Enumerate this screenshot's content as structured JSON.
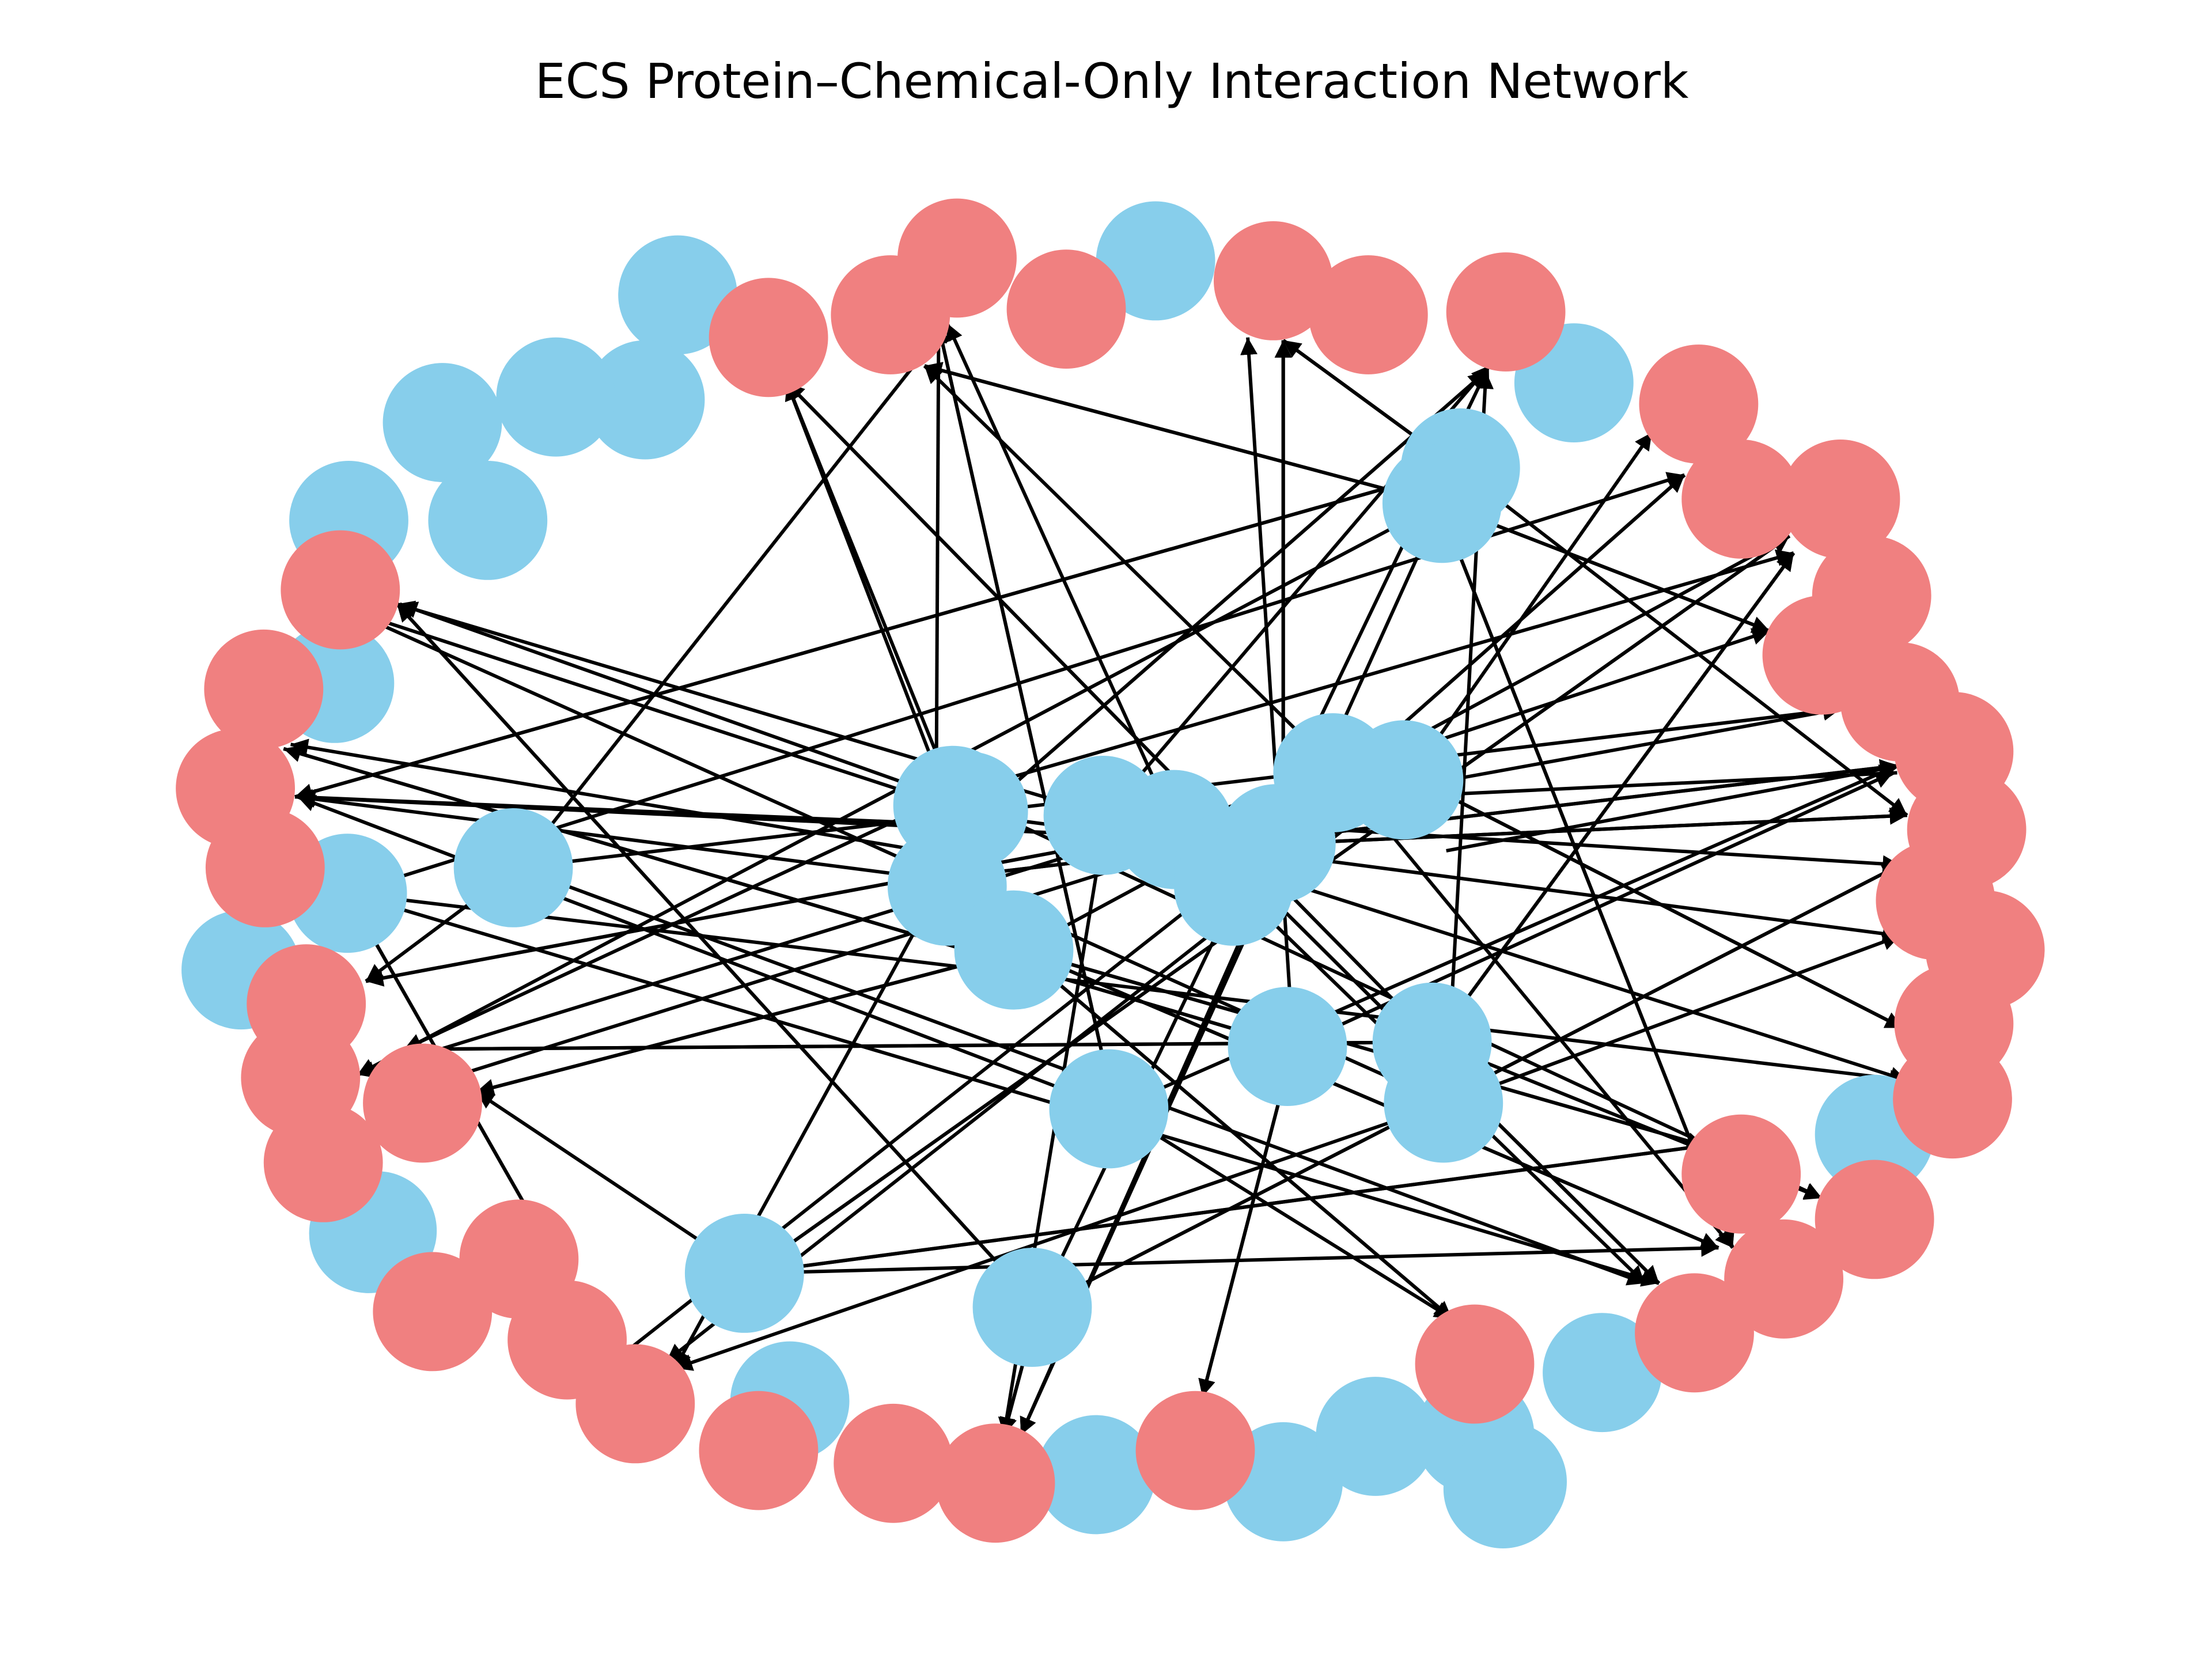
{
  "title": "ECS Protein–Chemical-Only Interaction Network",
  "legend_colors": {
    "protein": "#87CEEB",
    "chemical": "#F08080",
    "edge": "#000000"
  },
  "network": {
    "node_count": 98,
    "protein_node_count": 42,
    "chemical_node_count": 56,
    "directed": true
  }
}
